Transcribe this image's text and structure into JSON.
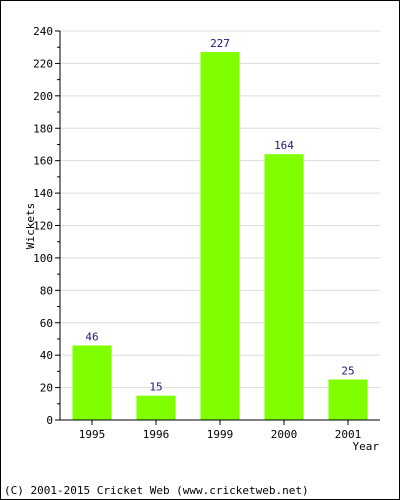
{
  "chart_data": {
    "type": "bar",
    "categories": [
      "1995",
      "1996",
      "1999",
      "2000",
      "2001"
    ],
    "values": [
      46,
      15,
      227,
      164,
      25
    ],
    "data_labels": [
      "46",
      "15",
      "227",
      "164",
      "25"
    ],
    "title": "",
    "xlabel": "Year",
    "ylabel": "Wickets",
    "ylim": [
      0,
      240
    ],
    "yticks": [
      0,
      20,
      40,
      60,
      80,
      100,
      120,
      140,
      160,
      180,
      200,
      220,
      240
    ],
    "grid": true,
    "bar_color": "#80ff00",
    "label_color": "#1a1a80"
  },
  "footer": {
    "copyright": "(C) 2001-2015 Cricket Web (www.cricketweb.net)"
  }
}
